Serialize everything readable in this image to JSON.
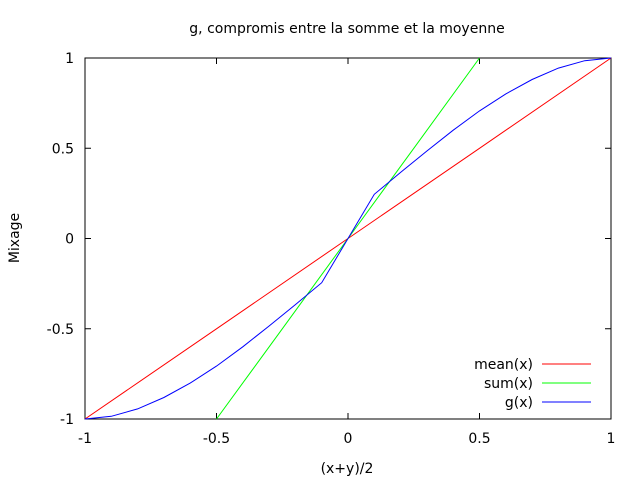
{
  "chart_data": {
    "type": "line",
    "title": "g, compromis entre la somme et la moyenne",
    "xlabel": "(x+y)/2",
    "ylabel": "Mixage",
    "xlim": [
      -1,
      1
    ],
    "ylim": [
      -1,
      1
    ],
    "xticks": [
      "-1",
      "-0.5",
      "0",
      "0.5",
      "1"
    ],
    "yticks": [
      "1",
      "0.5",
      "0",
      "-0.5",
      "-1"
    ],
    "xtick_values": [
      -1,
      -0.5,
      0,
      0.5,
      1
    ],
    "ytick_values": [
      1,
      0.5,
      0,
      -0.5,
      -1
    ],
    "grid": false,
    "legend_position": "bottom-right",
    "series": [
      {
        "name": "mean(x)",
        "color": "#ff0000",
        "x": [
          -1,
          -0.5,
          0,
          0.5,
          1
        ],
        "y": [
          -1,
          -0.5,
          0,
          0.5,
          1
        ]
      },
      {
        "name": "sum(x)",
        "color": "#00ff00",
        "x": [
          -0.5,
          -0.25,
          0,
          0.25,
          0.5
        ],
        "y": [
          -1,
          -0.5,
          0,
          0.5,
          1
        ]
      },
      {
        "name": "g(x)",
        "color": "#0000ff",
        "x": [
          -1,
          -0.9,
          -0.8,
          -0.7,
          -0.6,
          -0.5,
          -0.4,
          -0.3,
          -0.2,
          -0.1,
          0,
          0.1,
          0.2,
          0.3,
          0.4,
          0.5,
          0.6,
          0.7,
          0.8,
          0.9,
          1
        ],
        "y": [
          -1,
          -0.985,
          -0.944,
          -0.881,
          -0.801,
          -0.707,
          -0.6,
          -0.485,
          -0.366,
          -0.245,
          0,
          0.245,
          0.366,
          0.485,
          0.6,
          0.707,
          0.801,
          0.881,
          0.944,
          0.985,
          1
        ]
      }
    ]
  }
}
